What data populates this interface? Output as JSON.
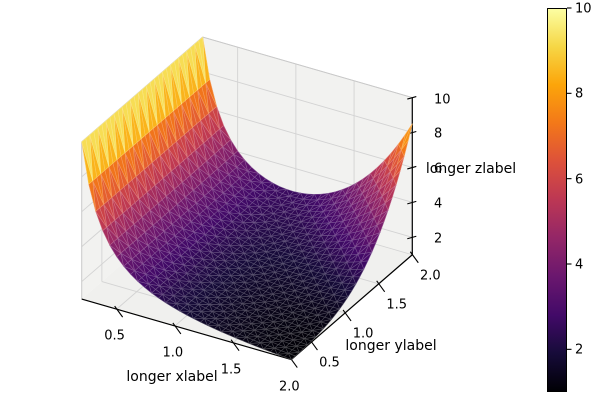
{
  "figure": {
    "background": "#ffffff"
  },
  "chart_data": {
    "type": "surface_3d",
    "title": "",
    "xlabel": "longer xlabel",
    "ylabel": "longer ylabel",
    "zlabel": "longer zlabel",
    "xlim": [
      0.2,
      2.0
    ],
    "ylim": [
      0.2,
      2.0
    ],
    "zlim": [
      1.0,
      10.0
    ],
    "x_ticks": {
      "values": [
        0.5,
        1.0,
        1.5,
        2.0
      ],
      "labels": [
        "0.5",
        "1.0",
        "1.5",
        "2.0"
      ]
    },
    "y_ticks": {
      "values": [
        0.5,
        1.0,
        1.5,
        2.0
      ],
      "labels": [
        "0.5",
        "1.0",
        "1.5",
        "2.0"
      ]
    },
    "z_ticks": {
      "values": [
        2,
        4,
        6,
        8,
        10
      ],
      "labels": [
        "2",
        "4",
        "6",
        "8",
        "10"
      ]
    },
    "view": {
      "elev": 30,
      "azim": -60,
      "projection": "orthographic"
    },
    "grid": true,
    "surface": {
      "kind": "trisurf",
      "grid_n": 30,
      "formula_approx": "z(x,y) = 2/x + 7.5*((x*y)/4)^3.5, clipped at 10",
      "features": "tall wall reaching z=10 along the x-min edge for all y; dark valley z~1-2 through the middle and front; ridge rising to z~8.5 at the far corner (x=2, y=2)",
      "colormap": "inferno",
      "vmin": 1.0,
      "vmax": 10.0
    },
    "colorbar": {
      "orientation": "vertical",
      "vmin": 1.0,
      "vmax": 10.0,
      "ticks": {
        "values": [
          2,
          4,
          6,
          8,
          10
        ],
        "labels": [
          "2",
          "4",
          "6",
          "8",
          "10"
        ]
      },
      "colormap": "inferno"
    },
    "colors": {
      "inferno_stops": [
        [
          0.0,
          "#000004"
        ],
        [
          0.1,
          "#160b39"
        ],
        [
          0.2,
          "#420a68"
        ],
        [
          0.3,
          "#6a176e"
        ],
        [
          0.4,
          "#932667"
        ],
        [
          0.5,
          "#bc3754"
        ],
        [
          0.6,
          "#dd513a"
        ],
        [
          0.7,
          "#f37819"
        ],
        [
          0.8,
          "#fca50a"
        ],
        [
          0.9,
          "#f6d746"
        ],
        [
          1.0,
          "#fcffa4"
        ]
      ],
      "pane": "#f2f2f0",
      "floor_pane": "#f0f0ee",
      "grid_line": "#d3d3d3",
      "box_edge": "#c8c8c8",
      "axis_line": "#000000",
      "text": "#000000"
    }
  }
}
